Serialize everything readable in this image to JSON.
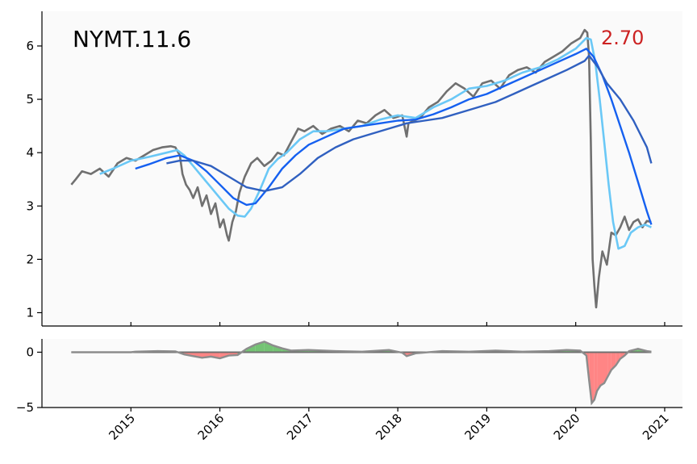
{
  "colors": {
    "price": "#707070",
    "ma_short": "#6ac8f6",
    "ma_mid": "#1560f0",
    "ma_long": "#3060c0",
    "last_value": "#cc2222",
    "positive_fill": "#5cb85c",
    "negative_fill": "#ff7070",
    "osc_line": "#8c8c8c",
    "panel_bg": "#fafafa"
  },
  "chart_data": [
    {
      "type": "line",
      "title": "NYMT.11.6",
      "last_value_label": "2.70",
      "xlabel": "",
      "ylabel": "",
      "xlim": [
        2014.0,
        2021.2
      ],
      "ylim": [
        0.75,
        6.65
      ],
      "yticks": [
        1,
        2,
        3,
        4,
        5,
        6
      ],
      "grid": false,
      "series": [
        {
          "key": "price",
          "x": [
            2014.33,
            2014.38,
            2014.45,
            2014.55,
            2014.65,
            2014.75,
            2014.85,
            2014.95,
            2015.05,
            2015.15,
            2015.25,
            2015.35,
            2015.45,
            2015.5,
            2015.55,
            2015.58,
            2015.62,
            2015.66,
            2015.7,
            2015.75,
            2015.8,
            2015.85,
            2015.9,
            2015.95,
            2016.0,
            2016.04,
            2016.08,
            2016.1,
            2016.14,
            2016.18,
            2016.22,
            2016.28,
            2016.35,
            2016.42,
            2016.5,
            2016.58,
            2016.65,
            2016.72,
            2016.8,
            2016.88,
            2016.95,
            2017.05,
            2017.15,
            2017.25,
            2017.35,
            2017.45,
            2017.55,
            2017.65,
            2017.75,
            2017.85,
            2017.95,
            2018.05,
            2018.1,
            2018.12,
            2018.18,
            2018.25,
            2018.35,
            2018.45,
            2018.55,
            2018.65,
            2018.75,
            2018.85,
            2018.95,
            2019.05,
            2019.15,
            2019.25,
            2019.35,
            2019.45,
            2019.55,
            2019.65,
            2019.75,
            2019.85,
            2019.95,
            2020.05,
            2020.1,
            2020.13,
            2020.15,
            2020.17,
            2020.19,
            2020.21,
            2020.23,
            2020.26,
            2020.3,
            2020.35,
            2020.4,
            2020.45,
            2020.5,
            2020.55,
            2020.6,
            2020.65,
            2020.7,
            2020.75,
            2020.8,
            2020.85
          ],
          "y": [
            3.4,
            3.5,
            3.65,
            3.6,
            3.7,
            3.55,
            3.8,
            3.9,
            3.85,
            3.95,
            4.05,
            4.1,
            4.12,
            4.1,
            3.95,
            3.6,
            3.4,
            3.3,
            3.15,
            3.35,
            3.0,
            3.2,
            2.85,
            3.05,
            2.6,
            2.75,
            2.45,
            2.35,
            2.7,
            2.9,
            3.25,
            3.55,
            3.8,
            3.9,
            3.75,
            3.85,
            4.0,
            3.95,
            4.2,
            4.45,
            4.4,
            4.5,
            4.35,
            4.45,
            4.5,
            4.4,
            4.6,
            4.55,
            4.7,
            4.8,
            4.65,
            4.7,
            4.3,
            4.55,
            4.6,
            4.65,
            4.85,
            4.95,
            5.15,
            5.3,
            5.2,
            5.05,
            5.3,
            5.35,
            5.2,
            5.45,
            5.55,
            5.6,
            5.5,
            5.7,
            5.8,
            5.9,
            6.05,
            6.15,
            6.3,
            6.25,
            5.8,
            4.2,
            2.0,
            1.5,
            1.1,
            1.65,
            2.15,
            1.9,
            2.5,
            2.45,
            2.6,
            2.8,
            2.55,
            2.7,
            2.75,
            2.6,
            2.72,
            2.7
          ]
        },
        {
          "key": "ma_short",
          "x": [
            2014.65,
            2014.8,
            2015.0,
            2015.2,
            2015.4,
            2015.52,
            2015.6,
            2015.7,
            2015.8,
            2015.9,
            2016.0,
            2016.1,
            2016.2,
            2016.28,
            2016.35,
            2016.45,
            2016.55,
            2016.65,
            2016.75,
            2016.9,
            2017.05,
            2017.2,
            2017.4,
            2017.6,
            2017.8,
            2018.0,
            2018.2,
            2018.4,
            2018.6,
            2018.8,
            2019.0,
            2019.2,
            2019.4,
            2019.6,
            2019.8,
            2020.0,
            2020.12,
            2020.17,
            2020.22,
            2020.27,
            2020.32,
            2020.37,
            2020.42,
            2020.48,
            2020.55,
            2020.62,
            2020.7,
            2020.78,
            2020.85
          ],
          "y": [
            3.6,
            3.7,
            3.85,
            3.92,
            4.0,
            4.05,
            3.95,
            3.75,
            3.55,
            3.35,
            3.15,
            2.95,
            2.82,
            2.8,
            2.95,
            3.3,
            3.7,
            3.88,
            4.0,
            4.25,
            4.4,
            4.4,
            4.45,
            4.5,
            4.62,
            4.7,
            4.65,
            4.85,
            5.0,
            5.2,
            5.25,
            5.35,
            5.5,
            5.6,
            5.75,
            5.95,
            6.15,
            6.12,
            5.7,
            5.0,
            4.2,
            3.4,
            2.7,
            2.2,
            2.25,
            2.5,
            2.6,
            2.65,
            2.6
          ]
        },
        {
          "key": "ma_mid",
          "x": [
            2015.05,
            2015.2,
            2015.4,
            2015.55,
            2015.7,
            2015.85,
            2016.0,
            2016.15,
            2016.3,
            2016.4,
            2016.55,
            2016.7,
            2016.85,
            2017.0,
            2017.2,
            2017.4,
            2017.6,
            2017.8,
            2018.0,
            2018.2,
            2018.4,
            2018.6,
            2018.8,
            2019.0,
            2019.2,
            2019.4,
            2019.6,
            2019.8,
            2020.0,
            2020.12,
            2020.2,
            2020.3,
            2020.4,
            2020.5,
            2020.6,
            2020.7,
            2020.8,
            2020.85
          ],
          "y": [
            3.7,
            3.78,
            3.9,
            3.95,
            3.85,
            3.65,
            3.4,
            3.15,
            3.02,
            3.05,
            3.35,
            3.7,
            3.95,
            4.15,
            4.3,
            4.45,
            4.5,
            4.55,
            4.6,
            4.62,
            4.72,
            4.85,
            5.0,
            5.1,
            5.25,
            5.4,
            5.55,
            5.7,
            5.85,
            5.95,
            5.8,
            5.45,
            5.0,
            4.5,
            4.0,
            3.45,
            2.9,
            2.65
          ]
        },
        {
          "key": "ma_long",
          "x": [
            2015.4,
            2015.55,
            2015.7,
            2015.9,
            2016.1,
            2016.3,
            2016.5,
            2016.7,
            2016.9,
            2017.1,
            2017.3,
            2017.5,
            2017.7,
            2017.9,
            2018.1,
            2018.3,
            2018.5,
            2018.7,
            2018.9,
            2019.1,
            2019.3,
            2019.5,
            2019.7,
            2019.9,
            2020.1,
            2020.15,
            2020.25,
            2020.35,
            2020.5,
            2020.65,
            2020.8,
            2020.85
          ],
          "y": [
            3.8,
            3.85,
            3.85,
            3.75,
            3.55,
            3.35,
            3.28,
            3.35,
            3.6,
            3.9,
            4.1,
            4.25,
            4.35,
            4.45,
            4.55,
            4.6,
            4.65,
            4.75,
            4.85,
            4.95,
            5.1,
            5.25,
            5.4,
            5.55,
            5.72,
            5.82,
            5.6,
            5.3,
            5.0,
            4.6,
            4.1,
            3.8
          ]
        }
      ]
    },
    {
      "type": "area",
      "xlim": [
        2014.0,
        2021.2
      ],
      "ylim": [
        -5.0,
        1.2
      ],
      "yticks": [
        0,
        -5
      ],
      "xticks": [
        2015,
        2016,
        2017,
        2018,
        2019,
        2020,
        2021
      ],
      "xtick_labels": [
        "2015",
        "2016",
        "2017",
        "2018",
        "2019",
        "2020",
        "2021"
      ],
      "series": [
        {
          "key": "oscillator",
          "x": [
            2014.33,
            2015.0,
            2015.05,
            2015.3,
            2015.5,
            2015.6,
            2015.7,
            2015.8,
            2015.9,
            2016.0,
            2016.1,
            2016.2,
            2016.3,
            2016.4,
            2016.5,
            2016.6,
            2016.7,
            2016.8,
            2017.0,
            2017.3,
            2017.6,
            2017.9,
            2018.05,
            2018.1,
            2018.2,
            2018.5,
            2018.8,
            2019.1,
            2019.4,
            2019.7,
            2019.9,
            2020.05,
            2020.12,
            2020.15,
            2020.18,
            2020.21,
            2020.24,
            2020.28,
            2020.32,
            2020.36,
            2020.4,
            2020.45,
            2020.5,
            2020.55,
            2020.6,
            2020.7,
            2020.8,
            2020.85
          ],
          "y": [
            0,
            0,
            0.05,
            0.1,
            0.08,
            -0.2,
            -0.35,
            -0.5,
            -0.4,
            -0.55,
            -0.3,
            -0.25,
            0.3,
            0.7,
            0.95,
            0.6,
            0.35,
            0.15,
            0.2,
            0.1,
            0.05,
            0.2,
            -0.05,
            -0.35,
            -0.1,
            0.1,
            0.05,
            0.15,
            0.05,
            0.1,
            0.2,
            0.15,
            -0.3,
            -2.5,
            -4.6,
            -4.3,
            -3.5,
            -3.0,
            -2.8,
            -2.2,
            -1.6,
            -1.2,
            -0.6,
            -0.3,
            0.1,
            0.3,
            0.1,
            0.05
          ]
        }
      ]
    }
  ]
}
